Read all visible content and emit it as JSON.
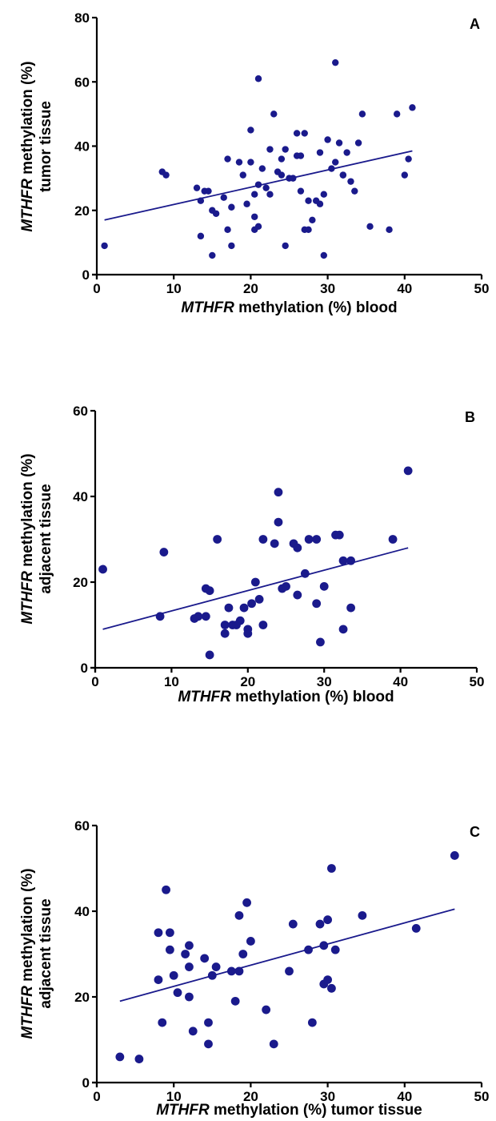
{
  "colors": {
    "points": "#1a1a8c",
    "fit_line": "#1a1a8c",
    "axes": "#000000"
  },
  "chart_data": [
    {
      "type": "scatter",
      "panel": "A",
      "xlabel_italic": "MTHFR",
      "xlabel_rest": " methylation (%) blood",
      "ylabel_line1_italic": "MTHFR",
      "ylabel_line1_rest": " methylation (%)",
      "ylabel_line2": "tumor tissue",
      "xlim": [
        0,
        50
      ],
      "ylim": [
        0,
        80
      ],
      "xticks": [
        0,
        10,
        20,
        30,
        40,
        50
      ],
      "yticks": [
        0,
        20,
        40,
        60,
        80
      ],
      "points": [
        [
          1,
          9
        ],
        [
          8.5,
          32
        ],
        [
          9,
          31
        ],
        [
          13,
          27
        ],
        [
          13.5,
          23
        ],
        [
          13.5,
          12
        ],
        [
          14,
          26
        ],
        [
          14.5,
          26
        ],
        [
          15,
          6
        ],
        [
          15,
          20
        ],
        [
          15.5,
          19
        ],
        [
          16.5,
          24
        ],
        [
          17,
          36
        ],
        [
          17,
          14
        ],
        [
          17.5,
          21
        ],
        [
          17.5,
          9
        ],
        [
          18.5,
          35
        ],
        [
          19,
          31
        ],
        [
          19.5,
          22
        ],
        [
          20,
          45
        ],
        [
          20,
          35
        ],
        [
          20.5,
          18
        ],
        [
          20.5,
          25
        ],
        [
          20.5,
          14
        ],
        [
          21,
          61
        ],
        [
          21,
          15
        ],
        [
          21,
          28
        ],
        [
          21.5,
          33
        ],
        [
          22,
          27
        ],
        [
          22.5,
          39
        ],
        [
          22.5,
          25
        ],
        [
          23,
          50
        ],
        [
          23.5,
          32
        ],
        [
          24,
          36
        ],
        [
          24,
          31
        ],
        [
          24.5,
          39
        ],
        [
          24.5,
          9
        ],
        [
          25,
          30
        ],
        [
          25.5,
          30
        ],
        [
          26,
          37
        ],
        [
          26,
          44
        ],
        [
          26.5,
          37
        ],
        [
          26.5,
          26
        ],
        [
          27,
          14
        ],
        [
          27,
          44
        ],
        [
          27.5,
          14
        ],
        [
          27.5,
          23
        ],
        [
          28,
          17
        ],
        [
          28.5,
          23
        ],
        [
          29,
          38
        ],
        [
          29,
          22
        ],
        [
          29.5,
          25
        ],
        [
          29.5,
          6
        ],
        [
          30,
          42
        ],
        [
          30.5,
          33
        ],
        [
          31,
          35
        ],
        [
          31,
          66
        ],
        [
          31.5,
          41
        ],
        [
          32,
          31
        ],
        [
          32,
          31
        ],
        [
          32.5,
          38
        ],
        [
          33,
          29
        ],
        [
          33.5,
          26
        ],
        [
          34,
          41
        ],
        [
          34.5,
          50
        ],
        [
          35.5,
          15
        ],
        [
          38,
          14
        ],
        [
          39,
          50
        ],
        [
          40,
          31
        ],
        [
          40.5,
          36
        ],
        [
          41,
          52
        ]
      ],
      "fit": {
        "x": [
          1,
          41
        ],
        "y": [
          17,
          38.5
        ]
      }
    },
    {
      "type": "scatter",
      "panel": "B",
      "xlabel_italic": "MTHFR",
      "xlabel_rest": " methylation (%) blood",
      "ylabel_line1_italic": "MTHFR",
      "ylabel_line1_rest": " methylation (%)",
      "ylabel_line2": "adjacent tissue",
      "xlim": [
        0,
        50
      ],
      "ylim": [
        0,
        60
      ],
      "xticks": [
        0,
        10,
        20,
        30,
        40,
        50
      ],
      "yticks": [
        0,
        20,
        40,
        60
      ],
      "points": [
        [
          1,
          23
        ],
        [
          8.5,
          12
        ],
        [
          9,
          27
        ],
        [
          13,
          11.5
        ],
        [
          13.5,
          12
        ],
        [
          14.5,
          18.5
        ],
        [
          14.5,
          12
        ],
        [
          15,
          3
        ],
        [
          15,
          18
        ],
        [
          16,
          30
        ],
        [
          17,
          8
        ],
        [
          17,
          10
        ],
        [
          17.5,
          14
        ],
        [
          18,
          10
        ],
        [
          18.5,
          10
        ],
        [
          19,
          11
        ],
        [
          19.5,
          14
        ],
        [
          20,
          9
        ],
        [
          20,
          8
        ],
        [
          20.5,
          15
        ],
        [
          21,
          20
        ],
        [
          21.5,
          16
        ],
        [
          22,
          30
        ],
        [
          22,
          10
        ],
        [
          23.5,
          29
        ],
        [
          24,
          41
        ],
        [
          24,
          34
        ],
        [
          24.5,
          18.5
        ],
        [
          25,
          19
        ],
        [
          26,
          29
        ],
        [
          26.5,
          17
        ],
        [
          26.5,
          28
        ],
        [
          27.5,
          22
        ],
        [
          28,
          30
        ],
        [
          29,
          30
        ],
        [
          29,
          15
        ],
        [
          29.5,
          6
        ],
        [
          30,
          19
        ],
        [
          31.5,
          31
        ],
        [
          32,
          31
        ],
        [
          32.5,
          9
        ],
        [
          32.5,
          25
        ],
        [
          33.5,
          25
        ],
        [
          33.5,
          14
        ],
        [
          39,
          30
        ],
        [
          41,
          46
        ]
      ],
      "fit": {
        "x": [
          1,
          41
        ],
        "y": [
          9,
          28
        ]
      }
    },
    {
      "type": "scatter",
      "panel": "C",
      "xlabel_italic": "MTHFR",
      "xlabel_rest": " methylation (%) tumor tissue",
      "ylabel_line1_italic": "MTHFR",
      "ylabel_line1_rest": " methylation (%)",
      "ylabel_line2": "adjacent tissue",
      "xlim": [
        0,
        50
      ],
      "ylim": [
        0,
        60
      ],
      "xticks": [
        0,
        10,
        20,
        30,
        40,
        50
      ],
      "yticks": [
        0,
        20,
        40,
        60
      ],
      "points": [
        [
          3,
          6
        ],
        [
          5.5,
          5.5
        ],
        [
          8,
          35
        ],
        [
          8,
          24
        ],
        [
          8.5,
          14
        ],
        [
          9,
          45
        ],
        [
          9.5,
          31
        ],
        [
          9.5,
          35
        ],
        [
          10,
          25
        ],
        [
          10.5,
          21
        ],
        [
          11.5,
          30
        ],
        [
          12,
          27
        ],
        [
          12,
          32
        ],
        [
          12,
          20
        ],
        [
          12.5,
          12
        ],
        [
          14,
          29
        ],
        [
          14.5,
          14
        ],
        [
          14.5,
          9
        ],
        [
          15,
          25
        ],
        [
          15.5,
          27
        ],
        [
          17.5,
          26
        ],
        [
          18,
          19
        ],
        [
          18.5,
          39
        ],
        [
          18.5,
          26
        ],
        [
          19,
          30
        ],
        [
          19.5,
          42
        ],
        [
          20,
          33
        ],
        [
          22,
          17
        ],
        [
          23,
          9
        ],
        [
          25,
          26
        ],
        [
          25.5,
          37
        ],
        [
          27.5,
          31
        ],
        [
          28,
          14
        ],
        [
          29,
          37
        ],
        [
          29.5,
          32
        ],
        [
          29.5,
          23
        ],
        [
          30,
          38
        ],
        [
          30,
          24
        ],
        [
          30.5,
          22
        ],
        [
          30.5,
          50
        ],
        [
          31,
          31
        ],
        [
          34.5,
          39
        ],
        [
          41.5,
          36
        ],
        [
          46.5,
          53
        ]
      ],
      "fit": {
        "x": [
          3,
          46.5
        ],
        "y": [
          19,
          40.5
        ]
      }
    }
  ]
}
